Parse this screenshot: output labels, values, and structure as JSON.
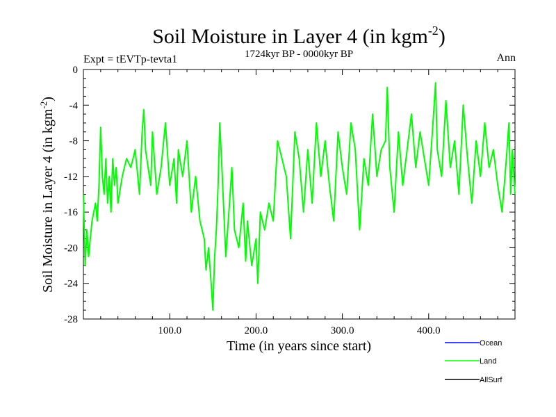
{
  "chart_data": {
    "type": "line",
    "title": "Soil Moisture in Layer 4 (in kgm",
    "title_superscript": "-2",
    "title_close": ")",
    "subtitle": "1724kyr BP - 0000kyr BP",
    "expt_label": "Expt = tEVTp-tevta1",
    "period_label": "Ann",
    "xlabel": "Time (in years since start)",
    "ylabel": "Soil Moisture in Layer 4 (in kgm",
    "ylabel_superscript": "-2",
    "ylabel_close": ")",
    "xlim": [
      0,
      500
    ],
    "ylim": [
      -28,
      0
    ],
    "x_ticks": [
      {
        "value": 100,
        "label": "100.0"
      },
      {
        "value": 200,
        "label": "200.0"
      },
      {
        "value": 300,
        "label": "300.0"
      },
      {
        "value": 400,
        "label": "400.0"
      }
    ],
    "y_ticks": [
      {
        "value": 0,
        "label": "0"
      },
      {
        "value": -4,
        "label": "-4"
      },
      {
        "value": -8,
        "label": "-8"
      },
      {
        "value": -12,
        "label": "-12"
      },
      {
        "value": -16,
        "label": "-16"
      },
      {
        "value": -20,
        "label": "-20"
      },
      {
        "value": -24,
        "label": "-24"
      },
      {
        "value": -28,
        "label": "-28"
      }
    ],
    "legend": [
      {
        "name": "Ocean",
        "color": "#0000ff"
      },
      {
        "name": "Land",
        "color": "#00ff00"
      },
      {
        "name": "AllSurf",
        "color": "#000000"
      }
    ],
    "series": [
      {
        "name": "Land",
        "color": "#00ff00",
        "x": [
          0,
          2,
          4,
          6,
          8,
          10,
          12,
          14,
          16,
          18,
          20,
          22,
          24,
          26,
          28,
          30,
          32,
          34,
          36,
          38,
          40,
          45,
          50,
          55,
          60,
          65,
          68,
          70,
          72,
          75,
          78,
          80,
          85,
          90,
          95,
          100,
          105,
          108,
          110,
          115,
          120,
          125,
          130,
          135,
          140,
          142,
          145,
          148,
          150,
          152,
          154,
          156,
          158,
          160,
          165,
          170,
          172,
          175,
          180,
          185,
          188,
          190,
          195,
          200,
          202,
          205,
          210,
          215,
          220,
          225,
          230,
          235,
          240,
          245,
          250,
          255,
          260,
          265,
          270,
          275,
          280,
          285,
          290,
          295,
          300,
          305,
          310,
          315,
          320,
          325,
          330,
          335,
          340,
          345,
          350,
          352,
          355,
          360,
          365,
          370,
          375,
          380,
          385,
          390,
          395,
          400,
          405,
          408,
          410,
          415,
          420,
          425,
          430,
          435,
          440,
          445,
          450,
          455,
          460,
          465,
          470,
          475,
          480,
          485,
          490,
          493,
          495,
          497,
          500
        ],
        "values": [
          -14,
          -22,
          -18,
          -21,
          -19,
          -17,
          -16,
          -15,
          -17,
          -13,
          -6.5,
          -12,
          -14,
          -10,
          -15,
          -12,
          -16,
          -10,
          -13,
          -11,
          -15,
          -12,
          -10,
          -11,
          -9,
          -14,
          -7,
          -4.5,
          -9,
          -11,
          -13,
          -7,
          -14,
          -11,
          -6,
          -13,
          -10,
          -15,
          -9,
          -12,
          -8,
          -16,
          -12,
          -17,
          -19,
          -22.5,
          -20,
          -24,
          -27,
          -21,
          -18,
          -13,
          -6,
          -10,
          -21,
          -14,
          -11,
          -18,
          -20,
          -15,
          -21.5,
          -17,
          -22,
          -19,
          -24,
          -16,
          -18,
          -15,
          -17,
          -8,
          -10,
          -12,
          -19,
          -7,
          -10,
          -16,
          -9,
          -15,
          -6,
          -12,
          -8,
          -13,
          -17,
          -7,
          -11,
          -14,
          -6,
          -9,
          -18,
          -10,
          -13,
          -5,
          -12,
          -9,
          -8,
          -2,
          -11,
          -16,
          -7,
          -13,
          -9,
          -5,
          -11,
          -7,
          -10,
          -13,
          -6,
          -1.5,
          -9,
          -12,
          -3.5,
          -11,
          -8,
          -14,
          -4,
          -10,
          -15,
          -8,
          -12,
          -6,
          -11,
          -9,
          -13,
          -16,
          -10,
          -6,
          -14,
          -9,
          -14
        ]
      }
    ]
  }
}
